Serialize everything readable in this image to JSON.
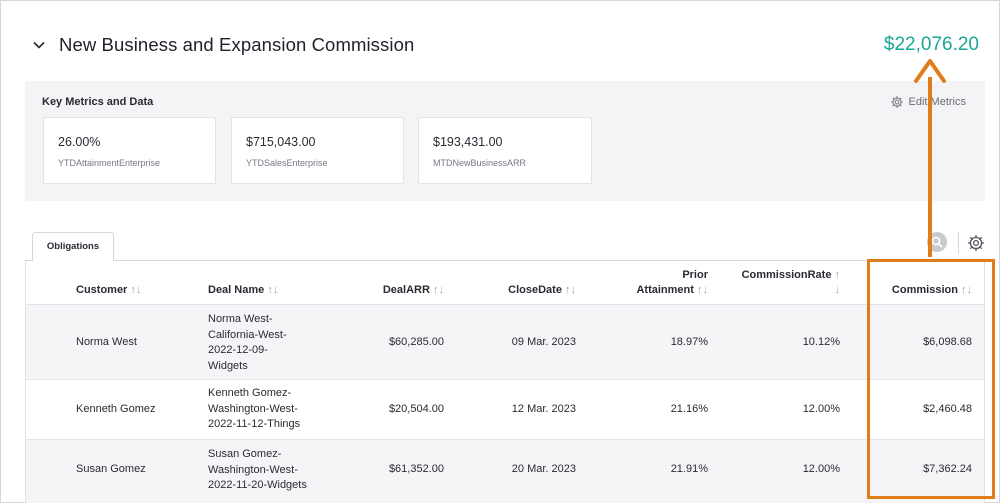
{
  "header": {
    "title": "New Business and Expansion Commission",
    "total": "$22,076.20"
  },
  "metrics": {
    "title": "Key Metrics and Data",
    "edit_label": "Edit Metrics",
    "cards": [
      {
        "value": "26.00%",
        "label": "YTDAttainmentEnterprise"
      },
      {
        "value": "$715,043.00",
        "label": "YTDSalesEnterprise"
      },
      {
        "value": "$193,431.00",
        "label": "MTDNewBusinessARR"
      }
    ]
  },
  "tabs": {
    "obligations": "Obligations"
  },
  "table": {
    "headers": {
      "customer": "Customer",
      "deal_name": "Deal Name",
      "deal_arr": "DealARR",
      "close_date": "CloseDate",
      "prior_attainment_1": "Prior",
      "prior_attainment_2": "Attainment",
      "commission_rate": "CommissionRate",
      "commission": "Commission"
    },
    "sort_glyph": "↑↓",
    "rows": [
      {
        "customer": "Norma West",
        "deal_lines": [
          "Norma West-",
          "California-West-",
          "2022-12-09-",
          "Widgets"
        ],
        "deal_arr": "$60,285.00",
        "close_date": "09 Mar. 2023",
        "prior_attainment": "18.97%",
        "commission_rate": "10.12%",
        "commission": "$6,098.68"
      },
      {
        "customer": "Kenneth Gomez",
        "deal_lines": [
          "Kenneth Gomez-",
          "Washington-West-",
          "2022-11-12-Things"
        ],
        "deal_arr": "$20,504.00",
        "close_date": "12 Mar. 2023",
        "prior_attainment": "21.16%",
        "commission_rate": "12.00%",
        "commission": "$2,460.48"
      },
      {
        "customer": "Susan Gomez",
        "deal_lines": [
          "Susan Gomez-",
          "Washington-West-",
          "2022-11-20-Widgets"
        ],
        "deal_arr": "$61,352.00",
        "close_date": "20 Mar. 2023",
        "prior_attainment": "21.91%",
        "commission_rate": "12.00%",
        "commission": "$7,362.24"
      }
    ]
  },
  "colors": {
    "accent_green": "#1aa793",
    "highlight_orange": "#e07d1a"
  }
}
